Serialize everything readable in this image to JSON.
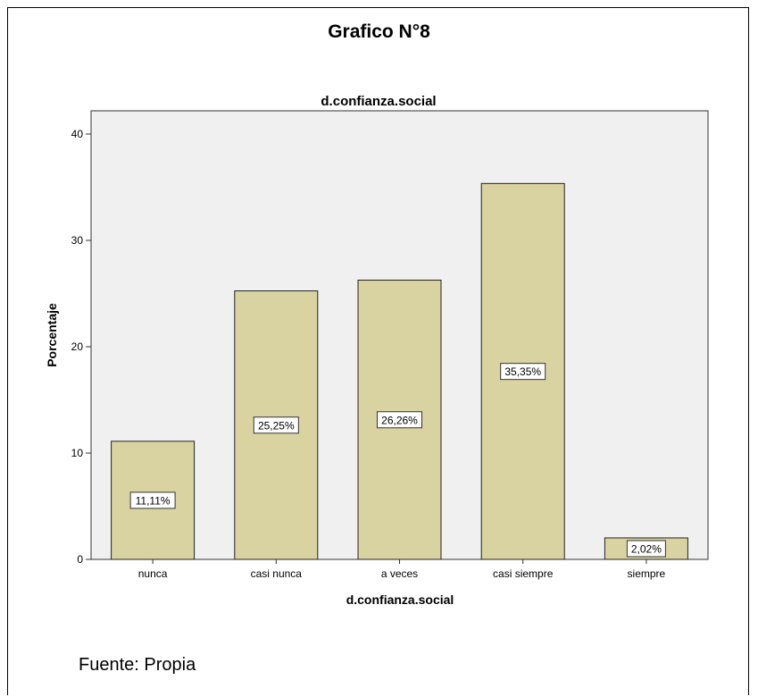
{
  "document": {
    "title": "Grafico N°8",
    "source": "Fuente: Propia"
  },
  "colors": {
    "bar_fill": "#d9d3a2",
    "bar_stroke": "#222222",
    "plot_background": "#f0f0f0"
  },
  "chart_data": {
    "type": "bar",
    "title": "d.confianza.social",
    "xlabel": "d.confianza.social",
    "ylabel": "Porcentaje",
    "categories": [
      "nunca",
      "casi nunca",
      "a veces",
      "casi siempre",
      "siempre"
    ],
    "values": [
      11.11,
      25.25,
      26.26,
      35.35,
      2.02
    ],
    "data_labels": [
      "11,11%",
      "25,25%",
      "26,26%",
      "35,35%",
      "2,02%"
    ],
    "yticks": [
      0,
      10,
      20,
      30,
      40
    ],
    "ylim": [
      0,
      40
    ],
    "grid": false,
    "legend": "none"
  }
}
